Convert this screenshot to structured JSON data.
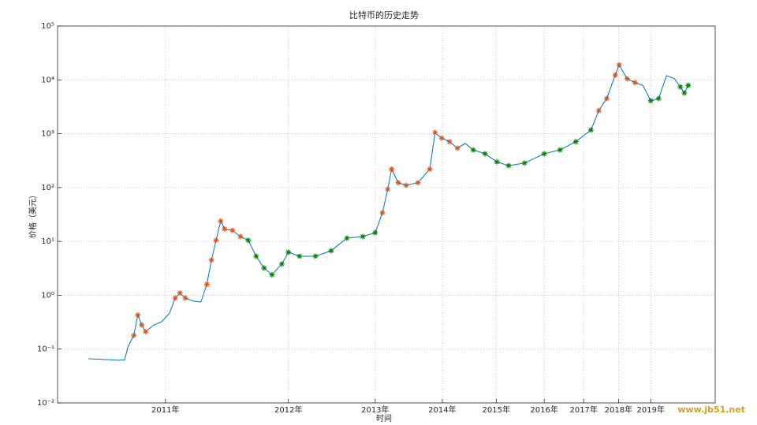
{
  "chart_data": {
    "type": "line",
    "title": "比特币的历史走势",
    "x_label": "时间",
    "y_label": "价格（美元）",
    "watermark": "www.jb51.net",
    "log_y": true,
    "grid": true,
    "xlim": [
      0,
      1000
    ],
    "ylim": [
      0.01,
      100000
    ],
    "xticks": [
      {
        "value": 164,
        "label": "2011年"
      },
      {
        "value": 351,
        "label": "2012年"
      },
      {
        "value": 483,
        "label": "2013年"
      },
      {
        "value": 585,
        "label": "2014年"
      },
      {
        "value": 667,
        "label": "2015年"
      },
      {
        "value": 740,
        "label": "2016年"
      },
      {
        "value": 800,
        "label": "2017年"
      },
      {
        "value": 853,
        "label": "2018年"
      },
      {
        "value": 902,
        "label": "2019年"
      }
    ],
    "yticks": [
      {
        "value": 0.01,
        "label": "10⁻²"
      },
      {
        "value": 0.1,
        "label": "10⁻¹"
      },
      {
        "value": 1,
        "label": "10⁰"
      },
      {
        "value": 10,
        "label": "10¹"
      },
      {
        "value": 100,
        "label": "10²"
      },
      {
        "value": 1000,
        "label": "10³"
      },
      {
        "value": 10000,
        "label": "10⁴"
      },
      {
        "value": 100000,
        "label": "10⁵"
      }
    ],
    "series": [
      {
        "color": "#0072bd",
        "marker": "none",
        "x": [
          47,
          62,
          92,
          102,
          107,
          116,
          122,
          128,
          134,
          146,
          158,
          170,
          179,
          186,
          194,
          206,
          218,
          227,
          234,
          241,
          248,
          254,
          266,
          278,
          290,
          302,
          314,
          326,
          341,
          351,
          368,
          392,
          416,
          440,
          464,
          483,
          494,
          502,
          508,
          518,
          530,
          548,
          566,
          574,
          584,
          596,
          608,
          620,
          632,
          650,
          668,
          686,
          710,
          740,
          764,
          788,
          811,
          823,
          835,
          848,
          854,
          866,
          878,
          890,
          902,
          914,
          926,
          938,
          947,
          953,
          959
        ],
        "values": [
          0.066,
          0.065,
          0.062,
          0.063,
          0.11,
          0.18,
          0.43,
          0.28,
          0.21,
          0.28,
          0.32,
          0.46,
          0.89,
          1.1,
          0.89,
          0.78,
          0.75,
          1.6,
          4.5,
          10.5,
          24,
          17,
          16,
          12.3,
          10.5,
          5.3,
          3.2,
          2.4,
          3.8,
          6.3,
          5.3,
          5.3,
          6.7,
          11.5,
          12.3,
          14.5,
          34,
          93,
          220,
          123,
          110,
          123,
          220,
          1050,
          830,
          710,
          540,
          660,
          500,
          425,
          300,
          255,
          285,
          425,
          500,
          710,
          1170,
          2700,
          4500,
          12300,
          19000,
          10500,
          8900,
          7900,
          4100,
          4500,
          12000,
          10500,
          7400,
          5700,
          7900
        ]
      },
      {
        "color": "#d95319",
        "marker": "*",
        "x": [
          116,
          122,
          128,
          134,
          179,
          186,
          194,
          227,
          234,
          241,
          248,
          254,
          266,
          278,
          494,
          502,
          508,
          518,
          530,
          548,
          566,
          574,
          584,
          596,
          608,
          823,
          835,
          848,
          854,
          866,
          878
        ],
        "values": [
          0.18,
          0.43,
          0.28,
          0.21,
          0.89,
          1.1,
          0.89,
          1.6,
          4.5,
          10.5,
          24,
          17,
          16,
          12.3,
          34,
          93,
          220,
          123,
          110,
          123,
          220,
          1050,
          830,
          710,
          540,
          2700,
          4500,
          12300,
          19000,
          10500,
          8900
        ]
      },
      {
        "color": "#008000",
        "marker": "*",
        "x": [
          290,
          302,
          314,
          326,
          341,
          351,
          368,
          392,
          416,
          440,
          464,
          483,
          632,
          650,
          668,
          686,
          710,
          740,
          764,
          788,
          811,
          902,
          914,
          947,
          953,
          959
        ],
        "values": [
          10.5,
          5.3,
          3.2,
          2.4,
          3.8,
          6.3,
          5.3,
          5.3,
          6.7,
          11.5,
          12.3,
          14.5,
          500,
          425,
          300,
          255,
          285,
          425,
          500,
          710,
          1170,
          4100,
          4500,
          7400,
          5700,
          7900
        ]
      }
    ]
  }
}
